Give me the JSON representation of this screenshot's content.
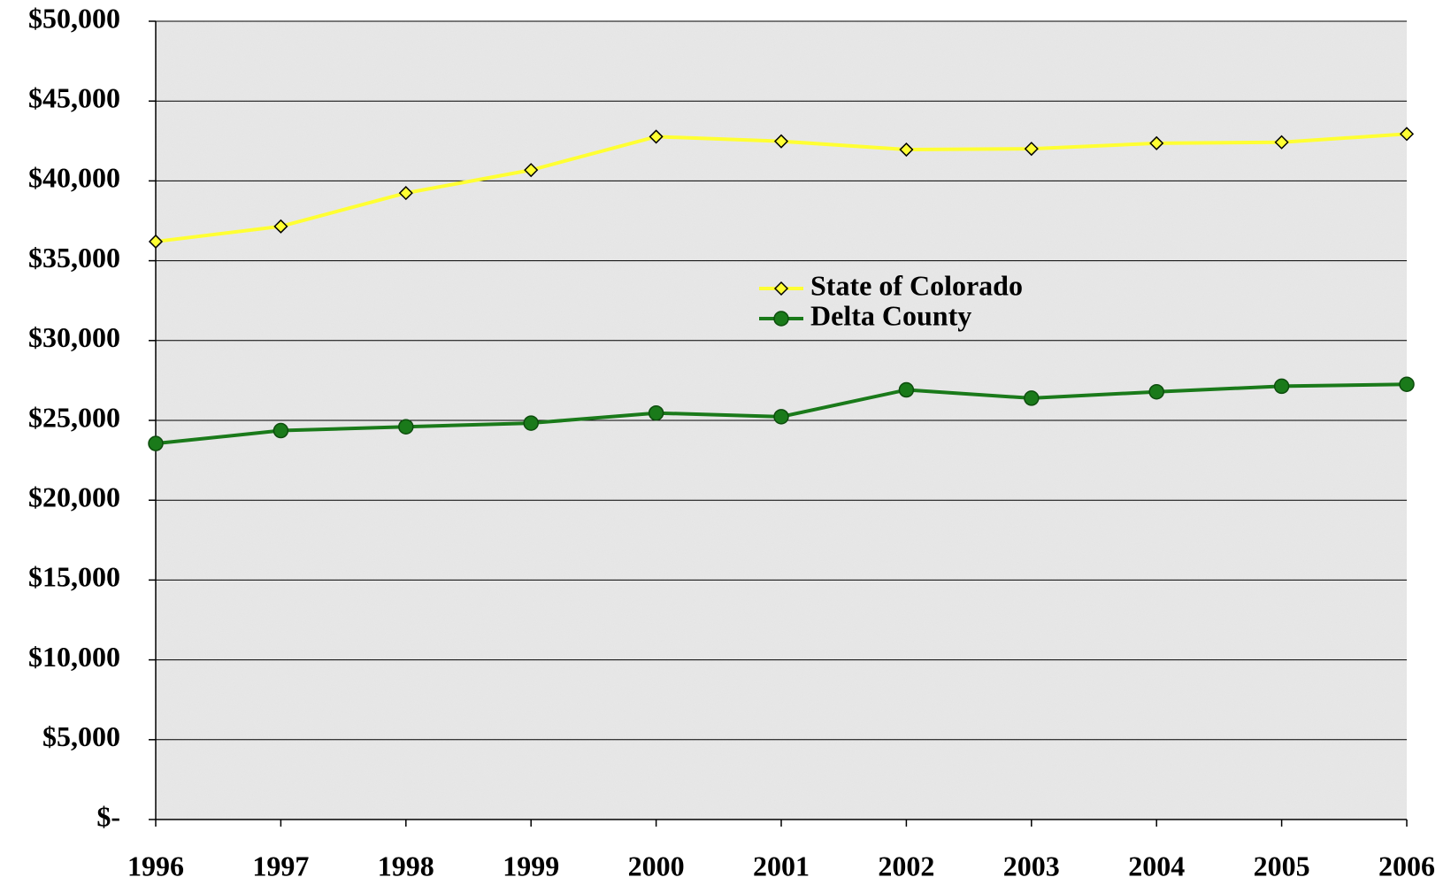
{
  "chart_data": {
    "type": "line",
    "categories": [
      "1996",
      "1997",
      "1998",
      "1999",
      "2000",
      "2001",
      "2002",
      "2003",
      "2004",
      "2005",
      "2006"
    ],
    "series": [
      {
        "name": "State of Colorado",
        "color": "#ffff33",
        "marker": "diamond",
        "values": [
          36200,
          37150,
          39240,
          40680,
          42770,
          42480,
          41960,
          42010,
          42360,
          42420,
          42940
        ]
      },
      {
        "name": "Delta County",
        "color": "#1a7a1a",
        "marker": "circle",
        "values": [
          23550,
          24360,
          24600,
          24830,
          25460,
          25230,
          26910,
          26390,
          26790,
          27140,
          27260
        ]
      }
    ],
    "ylim": [
      0,
      50000
    ],
    "yticks": [
      {
        "value": 0,
        "label": "$-"
      },
      {
        "value": 5000,
        "label": "$5,000"
      },
      {
        "value": 10000,
        "label": "$10,000"
      },
      {
        "value": 15000,
        "label": "$15,000"
      },
      {
        "value": 20000,
        "label": "$20,000"
      },
      {
        "value": 25000,
        "label": "$25,000"
      },
      {
        "value": 30000,
        "label": "$30,000"
      },
      {
        "value": 35000,
        "label": "$35,000"
      },
      {
        "value": 40000,
        "label": "$40,000"
      },
      {
        "value": 45000,
        "label": "$45,000"
      },
      {
        "value": 50000,
        "label": "$50,000"
      }
    ],
    "grid": true,
    "legend_position": "center"
  }
}
